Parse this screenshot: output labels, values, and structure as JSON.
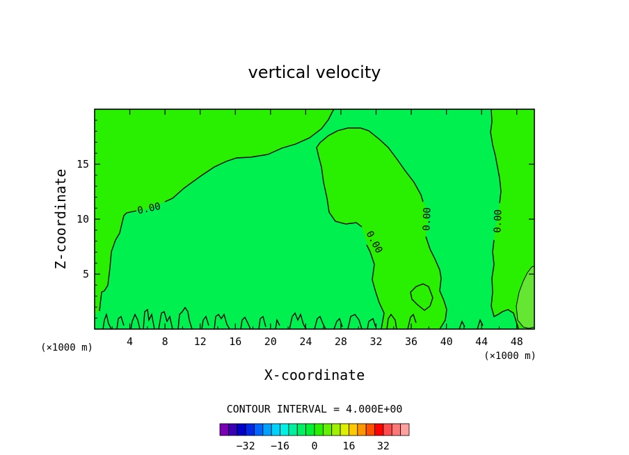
{
  "chart_data": {
    "type": "contour",
    "title": "vertical velocity",
    "xlabel": "X-coordinate",
    "ylabel": "Z-coordinate",
    "x_unit": "(×1000 m)",
    "x_unit_right": "(×1000 m)",
    "xlim": [
      0,
      50
    ],
    "ylim": [
      0,
      20
    ],
    "x_ticks": [
      4,
      8,
      12,
      16,
      20,
      24,
      28,
      32,
      36,
      40,
      44,
      48
    ],
    "y_ticks": [
      5,
      10,
      15
    ],
    "contour_interval_text": "CONTOUR INTERVAL = 4.000E+00",
    "contour_labels": [
      "0.00",
      "0.00",
      "0.00",
      "0.00"
    ],
    "colorbar": {
      "tick_labels": [
        "−32",
        "−16",
        "0",
        "16",
        "32"
      ],
      "tick_values": [
        -32,
        -16,
        0,
        16,
        32
      ],
      "colors": [
        "#7a00b4",
        "#3c00b4",
        "#0000c8",
        "#0028e6",
        "#0064ff",
        "#00a0ff",
        "#00d2ff",
        "#00f0e6",
        "#00f0a0",
        "#00f064",
        "#00f032",
        "#28f000",
        "#64f000",
        "#a0f000",
        "#dcf000",
        "#ffc800",
        "#ff9600",
        "#ff5000",
        "#ff0000",
        "#ff4c4c",
        "#ff7878",
        "#ffa0a0"
      ]
    },
    "field_colors": {
      "near_zero_negative": "#00f050",
      "near_zero_positive": "#28f000",
      "weak_positive": "#64e632"
    }
  }
}
